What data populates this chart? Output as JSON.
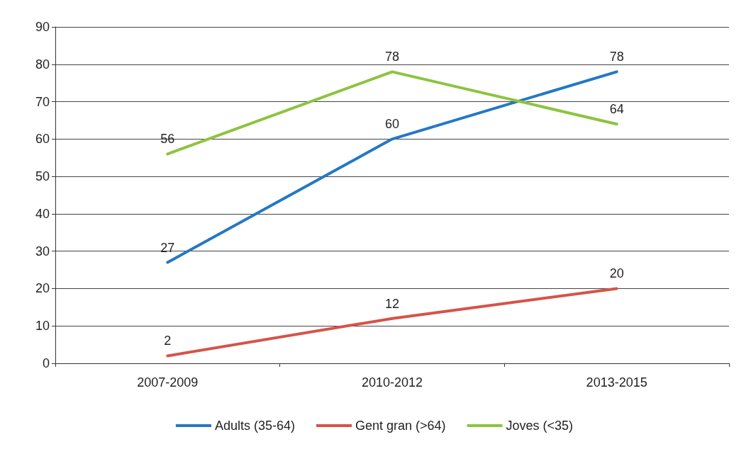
{
  "chart_data": {
    "type": "line",
    "categories": [
      "2007-2009",
      "2010-2012",
      "2013-2015"
    ],
    "series": [
      {
        "name": "Adults (35-64)",
        "color": "#2478c4",
        "values": [
          27,
          60,
          78
        ]
      },
      {
        "name": "Gent gran (>64)",
        "color": "#d5534a",
        "values": [
          2,
          12,
          20
        ]
      },
      {
        "name": "Joves (<35)",
        "color": "#8cc43f",
        "values": [
          56,
          78,
          64
        ]
      }
    ],
    "ylim": [
      0,
      90
    ],
    "yticks": [
      0,
      10,
      20,
      30,
      40,
      50,
      60,
      70,
      80,
      90
    ],
    "grid": "y",
    "legend": "bottom",
    "marker": "none",
    "line_style": "solid",
    "data_labels": true
  }
}
